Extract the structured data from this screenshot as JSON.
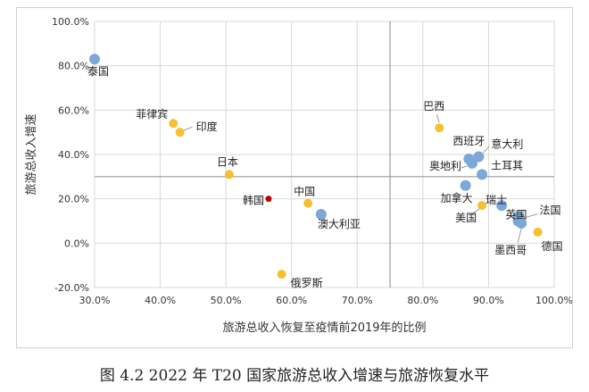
{
  "figure_caption": "图 4.2 2022 年 T20 国家旅游总收入增速与旅游恢复水平",
  "chart_data": {
    "type": "scatter",
    "xlabel": "旅游总收入恢复至疫情前2019年的比例",
    "ylabel": "旅游总收入增速",
    "xlim": [
      0.3,
      1.0
    ],
    "ylim": [
      -0.2,
      1.0
    ],
    "x_ticks": [
      0.3,
      0.4,
      0.5,
      0.6,
      0.7,
      0.8,
      0.9,
      1.0
    ],
    "x_tick_labels": [
      "30.0%",
      "40.0%",
      "50.0%",
      "60.0%",
      "70.0%",
      "80.0%",
      "90.0%",
      "100.0%"
    ],
    "y_ticks": [
      -0.2,
      0.0,
      0.2,
      0.4,
      0.6,
      0.8,
      1.0
    ],
    "y_tick_labels": [
      "-20.0%",
      "0.0%",
      "20.0%",
      "40.0%",
      "60.0%",
      "80.0%",
      "100.0%"
    ],
    "grid": true,
    "reference_lines": {
      "x": 0.75,
      "y": 0.3
    },
    "colors": {
      "blue": "#7BA7D9",
      "yellow": "#F5C02E",
      "red": "#C00000"
    },
    "points": [
      {
        "label": "泰国",
        "x": 0.3,
        "y": 0.83,
        "color": "blue"
      },
      {
        "label": "菲律宾",
        "x": 0.42,
        "y": 0.54,
        "color": "yellow"
      },
      {
        "label": "印度",
        "x": 0.43,
        "y": 0.5,
        "color": "yellow"
      },
      {
        "label": "日本",
        "x": 0.505,
        "y": 0.31,
        "color": "yellow"
      },
      {
        "label": "韩国",
        "x": 0.565,
        "y": 0.2,
        "color": "red"
      },
      {
        "label": "中国",
        "x": 0.625,
        "y": 0.18,
        "color": "yellow"
      },
      {
        "label": "澳大利亚",
        "x": 0.645,
        "y": 0.13,
        "color": "blue"
      },
      {
        "label": "俄罗斯",
        "x": 0.585,
        "y": -0.14,
        "color": "yellow"
      },
      {
        "label": "巴西",
        "x": 0.825,
        "y": 0.52,
        "color": "yellow"
      },
      {
        "label": "西班牙",
        "x": 0.87,
        "y": 0.38,
        "color": "blue"
      },
      {
        "label": "奥地利",
        "x": 0.875,
        "y": 0.36,
        "color": "blue"
      },
      {
        "label": "意大利",
        "x": 0.885,
        "y": 0.39,
        "color": "blue"
      },
      {
        "label": "土耳其",
        "x": 0.89,
        "y": 0.31,
        "color": "blue"
      },
      {
        "label": "加拿大",
        "x": 0.865,
        "y": 0.26,
        "color": "blue"
      },
      {
        "label": "美国",
        "x": 0.89,
        "y": 0.17,
        "color": "yellow"
      },
      {
        "label": "瑞士",
        "x": 0.92,
        "y": 0.17,
        "color": "blue"
      },
      {
        "label": "英国",
        "x": 0.945,
        "y": 0.12,
        "color": "blue"
      },
      {
        "label": "法国",
        "x": 0.945,
        "y": 0.1,
        "color": "blue"
      },
      {
        "label": "墨西哥",
        "x": 0.95,
        "y": 0.09,
        "color": "blue"
      },
      {
        "label": "德国",
        "x": 0.975,
        "y": 0.05,
        "color": "yellow"
      }
    ]
  }
}
